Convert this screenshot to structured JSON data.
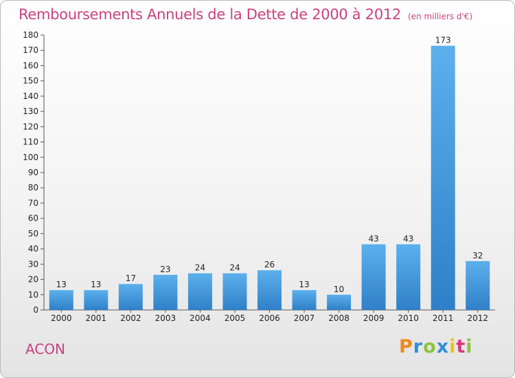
{
  "header": {
    "title": "Remboursements Annuels de la Dette de 2000 à 2012",
    "unit": "(en milliers d'€)"
  },
  "footer": {
    "commune": "ACON",
    "logo_letters": [
      {
        "ch": "P",
        "color": "#f08a1c"
      },
      {
        "ch": "r",
        "color": "#2f8fd8"
      },
      {
        "ch": "o",
        "color": "#8cc43c"
      },
      {
        "ch": "x",
        "color": "#2f8fd8"
      },
      {
        "ch": "i",
        "color": "#e8c21a"
      },
      {
        "ch": "t",
        "color": "#d83a7a"
      },
      {
        "ch": "i",
        "color": "#8cc43c"
      }
    ]
  },
  "chart_data": {
    "type": "bar",
    "title": "Remboursements Annuels de la Dette de 2000 à 2012",
    "subtitle": "(en milliers d'€)",
    "xlabel": "",
    "ylabel": "",
    "categories": [
      "2000",
      "2001",
      "2002",
      "2003",
      "2004",
      "2005",
      "2006",
      "2007",
      "2008",
      "2009",
      "2010",
      "2011",
      "2012"
    ],
    "values": [
      13,
      13,
      17,
      23,
      24,
      24,
      26,
      13,
      10,
      43,
      43,
      173,
      32
    ],
    "ylim": [
      0,
      180
    ],
    "yticks": [
      0,
      10,
      20,
      30,
      40,
      50,
      60,
      70,
      80,
      90,
      100,
      110,
      120,
      130,
      140,
      150,
      160,
      170,
      180
    ],
    "grid": false,
    "colors": {
      "bar": "#4a9ee0",
      "bar_highlight": "#2a7fc8",
      "axis": "#555555"
    }
  }
}
